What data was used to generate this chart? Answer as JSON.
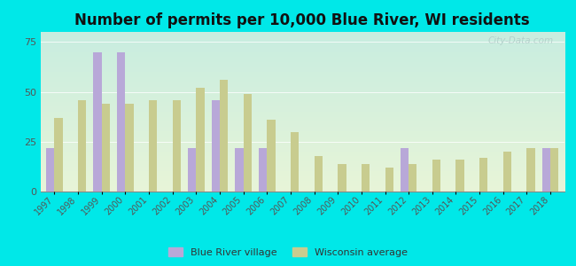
{
  "years": [
    1997,
    1998,
    1999,
    2000,
    2001,
    2002,
    2003,
    2004,
    2005,
    2006,
    2007,
    2008,
    2009,
    2010,
    2011,
    2012,
    2013,
    2014,
    2015,
    2016,
    2017,
    2018
  ],
  "blue_river": [
    22,
    0,
    70,
    70,
    0,
    0,
    22,
    46,
    22,
    22,
    0,
    0,
    0,
    0,
    0,
    22,
    0,
    0,
    0,
    0,
    0,
    22
  ],
  "wi_average": [
    37,
    46,
    44,
    44,
    46,
    46,
    52,
    56,
    49,
    36,
    30,
    18,
    14,
    14,
    12,
    14,
    16,
    16,
    17,
    20,
    22,
    22
  ],
  "blue_river_color": "#b8a8d8",
  "wi_average_color": "#c8cc8f",
  "title": "Number of permits per 10,000 Blue River, WI residents",
  "title_fontsize": 12,
  "ylim": [
    0,
    80
  ],
  "yticks": [
    0,
    25,
    50,
    75
  ],
  "background_color": "#00e8e8",
  "plot_bg_top": "#c8ede0",
  "plot_bg_bottom": "#e8f5d8",
  "watermark": "City-Data.com",
  "legend_blue_river": "Blue River village",
  "legend_wi": "Wisconsin average",
  "bar_width": 0.35
}
